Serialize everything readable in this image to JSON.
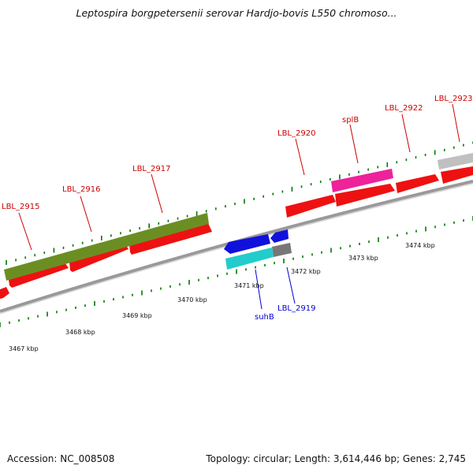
{
  "title": "Leptospira borgpetersenii serovar Hardjo-bovis L550 chromoso...",
  "accession_label": "Accession: NC_008508",
  "topology_label": "Topology: circular; Length: 3,614,446 bp; Genes: 2,745",
  "colors": {
    "gene_forward": "#ee1111",
    "gene_label_red": "#cc0000",
    "gene_label_blue": "#0000cc",
    "olive_feature": "#6b8e23",
    "magenta_feature": "#ee2299",
    "grey_feature": "#c0c0c0",
    "blue_feature": "#1111dd",
    "cyan_feature": "#22cccc",
    "dark_grey_feature": "#777777",
    "ruler_ticks": "#007700",
    "backbone": "#888888"
  },
  "scale_labels": [
    "3467 kbp",
    "3468 kbp",
    "3469 kbp",
    "3470 kbp",
    "3471 kbp",
    "3472 kbp",
    "3473 kbp",
    "3474 kbp"
  ],
  "gene_labels": [
    "LBL_2915",
    "LBL_2916",
    "LBL_2917",
    "LBL_2920",
    "splB",
    "LBL_2922",
    "LBL_2923",
    "suhB",
    "LBL_2919"
  ]
}
